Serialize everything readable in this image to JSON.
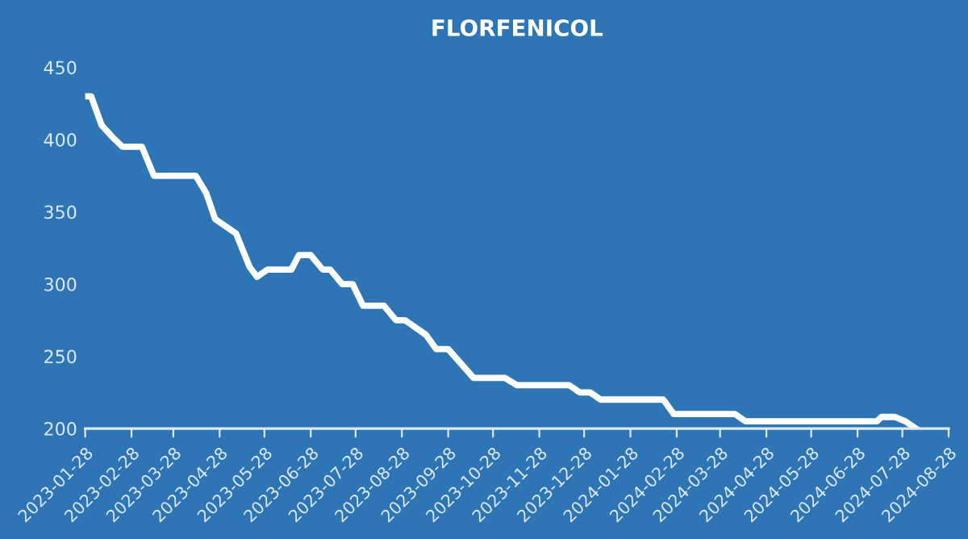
{
  "chart_data": {
    "type": "line",
    "title": "FLORFENICOL",
    "x": [
      "2023-01-28",
      "2023-02-01",
      "2023-02-08",
      "2023-02-15",
      "2023-02-22",
      "2023-03-07",
      "2023-03-15",
      "2023-04-12",
      "2023-04-19",
      "2023-04-25",
      "2023-05-09",
      "2023-05-18",
      "2023-05-23",
      "2023-05-30",
      "2023-06-15",
      "2023-06-20",
      "2023-06-28",
      "2023-07-06",
      "2023-07-11",
      "2023-07-19",
      "2023-07-26",
      "2023-08-02",
      "2023-08-16",
      "2023-08-24",
      "2023-08-30",
      "2023-09-13",
      "2023-09-20",
      "2023-09-28",
      "2023-10-15",
      "2023-11-05",
      "2023-11-13",
      "2023-12-18",
      "2023-12-25",
      "2024-01-01",
      "2024-01-08",
      "2024-02-19",
      "2024-02-26",
      "2024-04-07",
      "2024-04-14",
      "2024-07-11",
      "2024-07-14",
      "2024-07-23",
      "2024-07-30",
      "2024-08-06"
    ],
    "series": [
      {
        "color": "#ffffff",
        "values": [
          430,
          430,
          410,
          402,
          395,
          395,
          375,
          375,
          363,
          345,
          335,
          312,
          305,
          310,
          310,
          320,
          320,
          310,
          310,
          300,
          300,
          285,
          285,
          275,
          275,
          265,
          255,
          255,
          235,
          235,
          230,
          230,
          225,
          225,
          220,
          220,
          210,
          210,
          205,
          205,
          208,
          208,
          205,
          200
        ]
      }
    ],
    "xlim": [
      "2023-01-28",
      "2024-08-28"
    ],
    "xticks": [
      "2023-01-28",
      "2023-02-28",
      "2023-03-28",
      "2023-04-28",
      "2023-05-28",
      "2023-06-28",
      "2023-07-28",
      "2023-08-28",
      "2023-09-28",
      "2023-10-28",
      "2023-11-28",
      "2023-12-28",
      "2024-01-28",
      "2024-02-28",
      "2024-03-28",
      "2024-04-28",
      "2024-05-28",
      "2024-06-28",
      "2024-07-28",
      "2024-08-28"
    ],
    "ylim": [
      200,
      450
    ],
    "yticks": [
      200,
      250,
      300,
      350,
      400,
      450
    ],
    "grid": false,
    "legend": false,
    "marker": "none",
    "line_style": "solid"
  }
}
